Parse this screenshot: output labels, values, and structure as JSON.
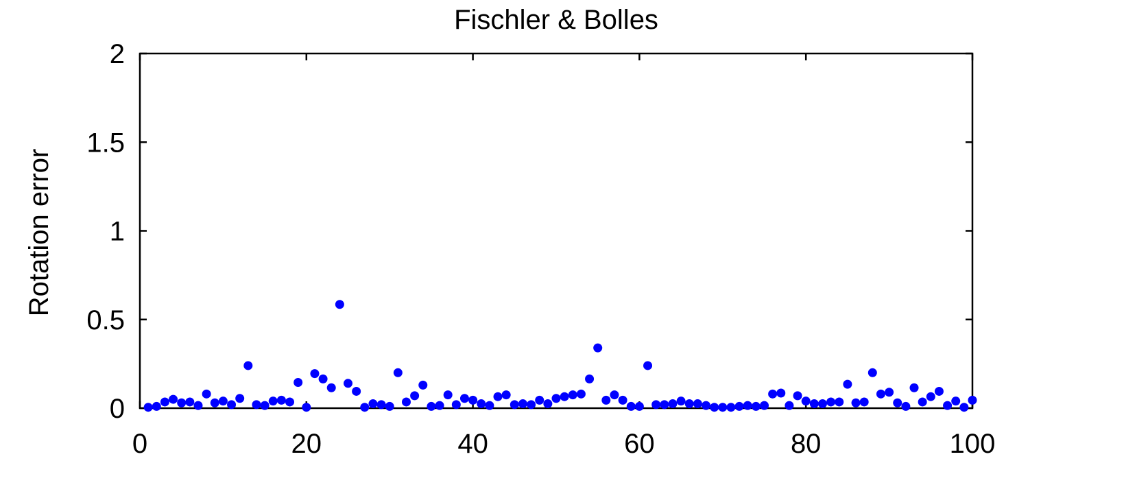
{
  "chart_data": {
    "type": "scatter",
    "title": "Fischler & Bolles",
    "xlabel": "",
    "ylabel": "Rotation error",
    "xlim": [
      0,
      100
    ],
    "ylim": [
      0,
      2
    ],
    "xticks": [
      0,
      20,
      40,
      60,
      80,
      100
    ],
    "yticks": [
      0,
      0.5,
      1,
      1.5,
      2
    ],
    "ytick_labels": [
      "0",
      "0.5",
      "1",
      "1.5",
      "2"
    ],
    "grid": false,
    "marker_color": "#0000ff",
    "series": [
      {
        "x": [
          1,
          2,
          3,
          4,
          5,
          6,
          7,
          8,
          9,
          10,
          11,
          12,
          13,
          14,
          15,
          16,
          17,
          18,
          19,
          20,
          21,
          22,
          23,
          24,
          25,
          26,
          27,
          28,
          29,
          30,
          31,
          32,
          33,
          34,
          35,
          36,
          37,
          38,
          39,
          40,
          41,
          42,
          43,
          44,
          45,
          46,
          47,
          48,
          49,
          50,
          51,
          52,
          53,
          54,
          55,
          56,
          57,
          58,
          59,
          60,
          61,
          62,
          63,
          64,
          65,
          66,
          67,
          68,
          69,
          70,
          71,
          72,
          73,
          74,
          75,
          76,
          77,
          78,
          79,
          80,
          81,
          82,
          83,
          84,
          85,
          86,
          87,
          88,
          89,
          90,
          91,
          92,
          93,
          94,
          95,
          96,
          97,
          98,
          99,
          100
        ],
        "y": [
          0.005,
          0.01,
          0.035,
          0.05,
          0.03,
          0.035,
          0.015,
          0.08,
          0.03,
          0.04,
          0.02,
          0.055,
          0.24,
          0.02,
          0.015,
          0.04,
          0.045,
          0.035,
          0.145,
          0.005,
          0.195,
          0.165,
          0.115,
          0.585,
          0.14,
          0.095,
          0.005,
          0.025,
          0.02,
          0.01,
          0.2,
          0.035,
          0.07,
          0.13,
          0.01,
          0.015,
          0.075,
          0.02,
          0.055,
          0.045,
          0.025,
          0.015,
          0.065,
          0.075,
          0.02,
          0.025,
          0.02,
          0.045,
          0.025,
          0.055,
          0.065,
          0.075,
          0.08,
          0.165,
          0.34,
          0.045,
          0.075,
          0.045,
          0.01,
          0.01,
          0.24,
          0.02,
          0.02,
          0.025,
          0.04,
          0.025,
          0.025,
          0.015,
          0.005,
          0.005,
          0.005,
          0.01,
          0.015,
          0.01,
          0.015,
          0.08,
          0.085,
          0.015,
          0.07,
          0.04,
          0.025,
          0.025,
          0.035,
          0.035,
          0.135,
          0.03,
          0.035,
          0.2,
          0.08,
          0.09,
          0.03,
          0.01,
          0.115,
          0.035,
          0.065,
          0.095,
          0.015,
          0.04,
          0.005,
          0.045
        ]
      }
    ]
  }
}
